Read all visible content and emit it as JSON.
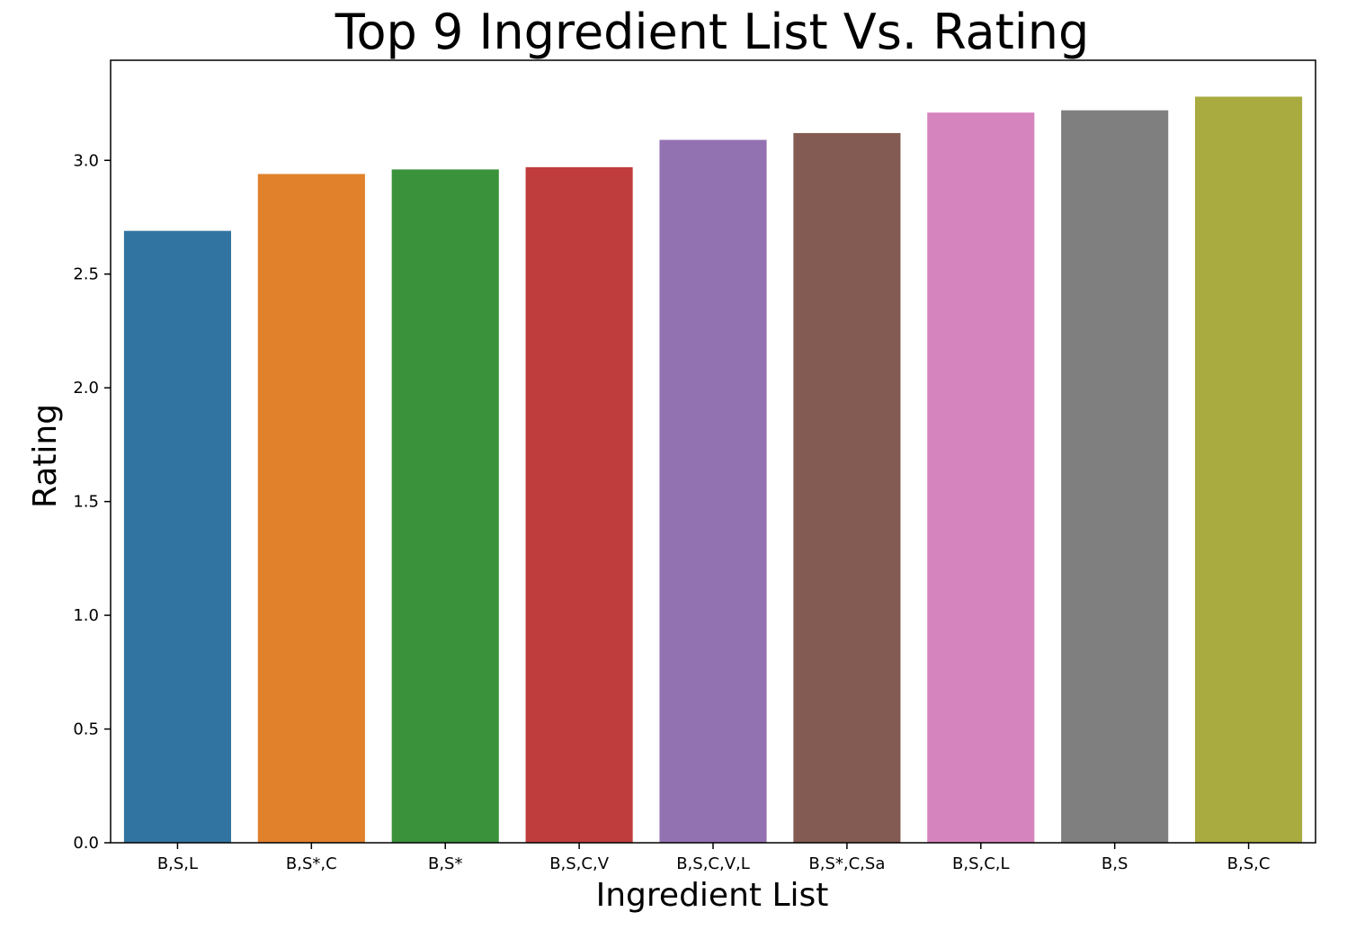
{
  "chart_data": {
    "type": "bar",
    "title": "Top 9 Ingredient List Vs. Rating",
    "xlabel": "Ingredient List",
    "ylabel": "Rating",
    "categories": [
      "B,S,L",
      "B,S*,C",
      "B,S*",
      "B,S,C,V",
      "B,S,C,V,L",
      "B,S*,C,Sa",
      "B,S,C,L",
      "B,S",
      "B,S,C"
    ],
    "values": [
      2.69,
      2.94,
      2.96,
      2.97,
      3.09,
      3.12,
      3.21,
      3.22,
      3.28
    ],
    "colors": [
      "#3274a1",
      "#e1812c",
      "#3a923a",
      "#c03d3e",
      "#9372b2",
      "#845b53",
      "#d684bd",
      "#7f7f7f",
      "#a9aa3f"
    ],
    "ylim": [
      0,
      3.44
    ],
    "yticks": [
      "0.0",
      "0.5",
      "1.0",
      "1.5",
      "2.0",
      "2.5",
      "3.0"
    ],
    "grid": false,
    "legend": "none"
  }
}
